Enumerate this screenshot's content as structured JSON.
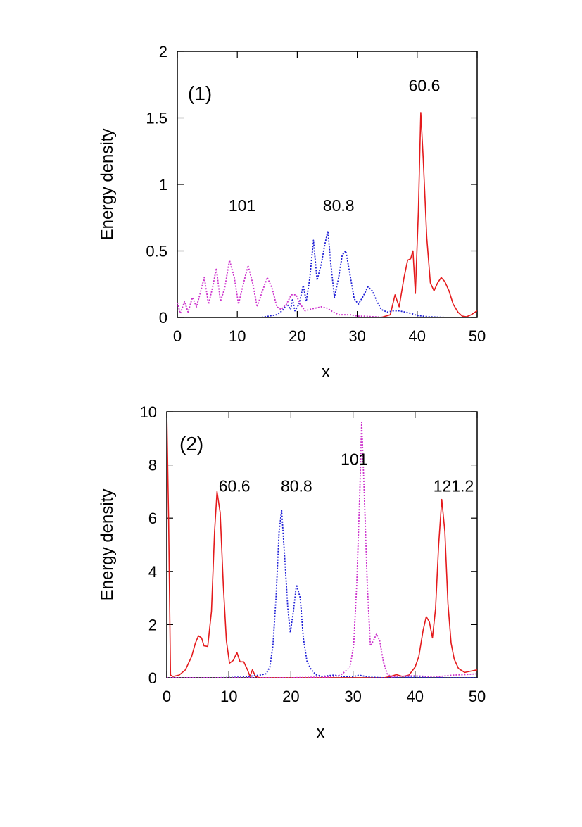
{
  "chart_data": [
    {
      "type": "line",
      "panel_label": "(1)",
      "xlabel": "x",
      "ylabel": "Energy density",
      "xlim": [
        0,
        50
      ],
      "ylim": [
        0,
        2
      ],
      "xticks": [
        0,
        10,
        20,
        30,
        40,
        50
      ],
      "yticks": [
        0,
        0.5,
        1,
        1.5,
        2
      ],
      "ytick_labels": [
        "0",
        "0.5",
        "1",
        "1.5",
        "2"
      ],
      "grid": false,
      "legend": "none",
      "series": [
        {
          "color": "#e41a1c",
          "style": "solid",
          "points": [
            [
              0,
              0
            ],
            [
              10,
              0
            ],
            [
              20,
              0
            ],
            [
              30,
              0
            ],
            [
              34,
              0
            ],
            [
              35.5,
              0.02
            ],
            [
              36.3,
              0.17
            ],
            [
              37,
              0.08
            ],
            [
              37.8,
              0.3
            ],
            [
              38.4,
              0.43
            ],
            [
              38.9,
              0.44
            ],
            [
              39.3,
              0.5
            ],
            [
              39.7,
              0.18
            ],
            [
              40.2,
              0.8
            ],
            [
              40.6,
              1.54
            ],
            [
              41,
              1.2
            ],
            [
              41.6,
              0.6
            ],
            [
              42.2,
              0.26
            ],
            [
              42.8,
              0.2
            ],
            [
              43.4,
              0.26
            ],
            [
              44,
              0.3
            ],
            [
              44.6,
              0.27
            ],
            [
              45.3,
              0.2
            ],
            [
              46,
              0.1
            ],
            [
              46.8,
              0.04
            ],
            [
              47.5,
              0.01
            ],
            [
              48.2,
              0.005
            ],
            [
              49,
              0.02
            ],
            [
              50,
              0.05
            ]
          ]
        },
        {
          "color": "#1f1fd6",
          "style": "dotted",
          "points": [
            [
              0,
              0
            ],
            [
              14,
              0
            ],
            [
              16.5,
              0.02
            ],
            [
              17.5,
              0.05
            ],
            [
              18.3,
              0.1
            ],
            [
              18.9,
              0.06
            ],
            [
              19.2,
              0.14
            ],
            [
              19.6,
              0.05
            ],
            [
              20.3,
              0.1
            ],
            [
              21,
              0.24
            ],
            [
              21.5,
              0.12
            ],
            [
              22.1,
              0.3
            ],
            [
              22.7,
              0.58
            ],
            [
              23.3,
              0.28
            ],
            [
              24,
              0.4
            ],
            [
              24.6,
              0.55
            ],
            [
              25.1,
              0.65
            ],
            [
              25.6,
              0.4
            ],
            [
              26.2,
              0.15
            ],
            [
              26.9,
              0.3
            ],
            [
              27.5,
              0.47
            ],
            [
              28.1,
              0.5
            ],
            [
              28.8,
              0.32
            ],
            [
              29.5,
              0.14
            ],
            [
              30.2,
              0.1
            ],
            [
              31,
              0.16
            ],
            [
              31.8,
              0.23
            ],
            [
              32.5,
              0.2
            ],
            [
              33.3,
              0.12
            ],
            [
              34,
              0.06
            ],
            [
              35,
              0.04
            ],
            [
              36,
              0.05
            ],
            [
              37,
              0.05
            ],
            [
              38,
              0.04
            ],
            [
              39,
              0.03
            ],
            [
              40,
              0.015
            ],
            [
              42,
              0.005
            ],
            [
              45,
              0
            ],
            [
              50,
              0
            ]
          ]
        },
        {
          "color": "#cc33cc",
          "style": "dotted",
          "points": [
            [
              0,
              0.11
            ],
            [
              0.5,
              0.03
            ],
            [
              1.2,
              0.12
            ],
            [
              1.8,
              0.04
            ],
            [
              2.5,
              0.15
            ],
            [
              3.2,
              0.08
            ],
            [
              3.8,
              0.18
            ],
            [
              4.5,
              0.3
            ],
            [
              5.2,
              0.1
            ],
            [
              5.9,
              0.23
            ],
            [
              6.5,
              0.37
            ],
            [
              7.2,
              0.12
            ],
            [
              7.9,
              0.22
            ],
            [
              8.7,
              0.43
            ],
            [
              9.5,
              0.3
            ],
            [
              10.2,
              0.1
            ],
            [
              11,
              0.25
            ],
            [
              11.8,
              0.39
            ],
            [
              12.6,
              0.25
            ],
            [
              13.3,
              0.08
            ],
            [
              14.2,
              0.2
            ],
            [
              15,
              0.3
            ],
            [
              15.8,
              0.22
            ],
            [
              16.6,
              0.08
            ],
            [
              17.3,
              0.06
            ],
            [
              18.2,
              0.1
            ],
            [
              19,
              0.17
            ],
            [
              19.8,
              0.17
            ],
            [
              20.5,
              0.1
            ],
            [
              21.3,
              0.05
            ],
            [
              22,
              0.06
            ],
            [
              23,
              0.07
            ],
            [
              24,
              0.08
            ],
            [
              25,
              0.07
            ],
            [
              26,
              0.04
            ],
            [
              27,
              0.02
            ],
            [
              28,
              0.02
            ],
            [
              29,
              0.02
            ],
            [
              30,
              0.01
            ],
            [
              31,
              0.01
            ],
            [
              33,
              0.005
            ],
            [
              35,
              0
            ],
            [
              40,
              0
            ],
            [
              45,
              0
            ],
            [
              50,
              0
            ]
          ]
        }
      ],
      "annotations": [
        {
          "text": "101",
          "x": 10.8,
          "y": 0.8
        },
        {
          "text": "80.8",
          "x": 26.9,
          "y": 0.8
        },
        {
          "text": "60.6",
          "x": 41.2,
          "y": 1.7
        }
      ]
    },
    {
      "type": "line",
      "panel_label": "(2)",
      "xlabel": "x",
      "ylabel": "Energy density",
      "xlim": [
        0,
        50
      ],
      "ylim": [
        0,
        10
      ],
      "xticks": [
        0,
        10,
        20,
        30,
        40,
        50
      ],
      "yticks": [
        0,
        2,
        4,
        6,
        8,
        10
      ],
      "ytick_labels": [
        "0",
        "2",
        "4",
        "6",
        "8",
        "10"
      ],
      "grid": false,
      "legend": "none",
      "series": [
        {
          "color": "#e41a1c",
          "style": "solid",
          "points": [
            [
              0,
              10
            ],
            [
              0.3,
              6
            ],
            [
              0.6,
              0.1
            ],
            [
              1,
              0.05
            ],
            [
              2,
              0.1
            ],
            [
              3,
              0.3
            ],
            [
              4,
              0.8
            ],
            [
              4.6,
              1.3
            ],
            [
              5.1,
              1.58
            ],
            [
              5.6,
              1.5
            ],
            [
              6,
              1.2
            ],
            [
              6.6,
              1.18
            ],
            [
              7.2,
              2.5
            ],
            [
              7.7,
              5.5
            ],
            [
              8.1,
              7.0
            ],
            [
              8.6,
              6.2
            ],
            [
              9.1,
              3.5
            ],
            [
              9.6,
              1.4
            ],
            [
              10.1,
              0.55
            ],
            [
              10.7,
              0.65
            ],
            [
              11.3,
              0.95
            ],
            [
              11.8,
              0.6
            ],
            [
              12.4,
              0.6
            ],
            [
              13,
              0.3
            ],
            [
              13.4,
              0.05
            ],
            [
              13.8,
              0.3
            ],
            [
              14.3,
              0.05
            ],
            [
              15,
              0
            ],
            [
              20,
              0
            ],
            [
              25,
              0
            ],
            [
              30,
              0
            ],
            [
              35,
              0
            ],
            [
              36,
              0.05
            ],
            [
              37,
              0.12
            ],
            [
              38,
              0.05
            ],
            [
              39,
              0.1
            ],
            [
              40,
              0.4
            ],
            [
              40.6,
              0.8
            ],
            [
              41.3,
              1.8
            ],
            [
              41.8,
              2.3
            ],
            [
              42.3,
              2.1
            ],
            [
              42.8,
              1.5
            ],
            [
              43.3,
              2.6
            ],
            [
              43.8,
              5.0
            ],
            [
              44.3,
              6.7
            ],
            [
              44.8,
              5.5
            ],
            [
              45.3,
              2.8
            ],
            [
              45.8,
              1.3
            ],
            [
              46.3,
              0.7
            ],
            [
              47,
              0.35
            ],
            [
              48,
              0.2
            ],
            [
              49,
              0.25
            ],
            [
              50,
              0.3
            ]
          ]
        },
        {
          "color": "#1f1fd6",
          "style": "dotted",
          "points": [
            [
              0,
              0
            ],
            [
              8,
              0
            ],
            [
              12,
              0.02
            ],
            [
              15,
              0.1
            ],
            [
              16,
              0.15
            ],
            [
              16.6,
              0.4
            ],
            [
              17.1,
              1.2
            ],
            [
              17.6,
              3.0
            ],
            [
              18.1,
              5.5
            ],
            [
              18.5,
              6.3
            ],
            [
              19,
              4.5
            ],
            [
              19.5,
              2.6
            ],
            [
              19.9,
              1.7
            ],
            [
              20.4,
              2.5
            ],
            [
              20.9,
              3.5
            ],
            [
              21.5,
              3.0
            ],
            [
              22,
              1.5
            ],
            [
              22.6,
              0.6
            ],
            [
              23.3,
              0.3
            ],
            [
              24,
              0.12
            ],
            [
              25,
              0.05
            ],
            [
              26,
              0.08
            ],
            [
              27,
              0.1
            ],
            [
              28,
              0.05
            ],
            [
              29,
              0.05
            ],
            [
              30,
              0.04
            ],
            [
              31,
              0.1
            ],
            [
              32,
              0.05
            ],
            [
              33,
              0.02
            ],
            [
              35,
              0
            ],
            [
              40,
              0.02
            ],
            [
              45,
              0
            ],
            [
              50,
              0
            ]
          ]
        },
        {
          "color": "#cc33cc",
          "style": "dotted",
          "points": [
            [
              0,
              0
            ],
            [
              10,
              0
            ],
            [
              20,
              0
            ],
            [
              24,
              0.02
            ],
            [
              26,
              0.03
            ],
            [
              27,
              0.05
            ],
            [
              28,
              0.1
            ],
            [
              28.8,
              0.25
            ],
            [
              29.5,
              0.4
            ],
            [
              30.1,
              1.2
            ],
            [
              30.6,
              3.5
            ],
            [
              31.1,
              7.0
            ],
            [
              31.4,
              9.6
            ],
            [
              31.8,
              7.0
            ],
            [
              32.3,
              3.5
            ],
            [
              32.8,
              1.2
            ],
            [
              33.3,
              1.4
            ],
            [
              33.8,
              1.65
            ],
            [
              34.3,
              1.4
            ],
            [
              34.9,
              0.6
            ],
            [
              35.5,
              0.15
            ],
            [
              36.2,
              0.03
            ],
            [
              37,
              0.05
            ],
            [
              40,
              0.08
            ],
            [
              42,
              0.05
            ],
            [
              44,
              0.05
            ],
            [
              46,
              0.1
            ],
            [
              48,
              0.12
            ],
            [
              50,
              0.15
            ]
          ]
        }
      ],
      "annotations": [
        {
          "text": "60.6",
          "x": 10.9,
          "y": 7.0
        },
        {
          "text": "80.8",
          "x": 20.9,
          "y": 7.0
        },
        {
          "text": "101",
          "x": 30.2,
          "y": 8.0
        },
        {
          "text": "121.2",
          "x": 46.2,
          "y": 7.0
        }
      ]
    }
  ]
}
